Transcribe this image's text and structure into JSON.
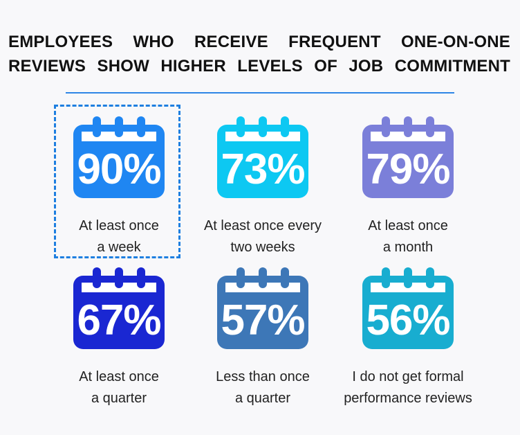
{
  "title": {
    "line1": "EMPLOYEES WHO RECEIVE FREQUENT ONE-ON-ONE",
    "line2": "REVIEWS SHOW HIGHER LEVELS OF JOB COMMITMENT"
  },
  "chart_data": {
    "type": "table",
    "title": "EMPLOYEES WHO RECEIVE FREQUENT ONE-ON-ONE REVIEWS SHOW HIGHER LEVELS OF JOB COMMITMENT",
    "highlighted_index": 0,
    "items": [
      {
        "value_label": "90%",
        "value": 90,
        "label_line1": "At least once",
        "label_line2": "a week",
        "color": "#1f86f2"
      },
      {
        "value_label": "73%",
        "value": 73,
        "label_line1": "At least once every",
        "label_line2": "two weeks",
        "color": "#0dc8f2"
      },
      {
        "value_label": "79%",
        "value": 79,
        "label_line1": "At least once",
        "label_line2": "a month",
        "color": "#7b7fd9"
      },
      {
        "value_label": "67%",
        "value": 67,
        "label_line1": "At least once",
        "label_line2": "a quarter",
        "color": "#1a27d2"
      },
      {
        "value_label": "57%",
        "value": 57,
        "label_line1": "Less than once",
        "label_line2": "a quarter",
        "color": "#3d77b7"
      },
      {
        "value_label": "56%",
        "value": 56,
        "label_line1": "I do not get formal",
        "label_line2": "performance reviews",
        "color": "#18add0"
      }
    ]
  }
}
